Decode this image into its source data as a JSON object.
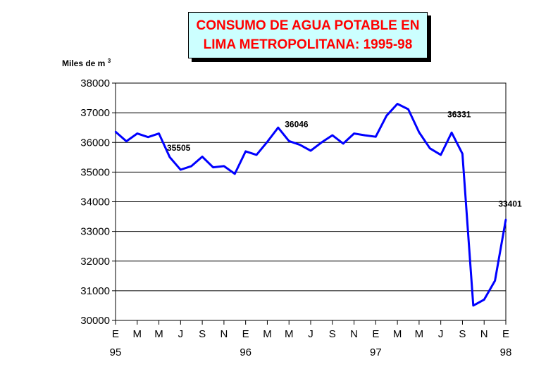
{
  "chart_data": {
    "type": "line",
    "title_lines": [
      "CONSUMO DE AGUA POTABLE EN",
      "LIMA METROPOLITANA: 1995-98"
    ],
    "ylabel": "Miles de m",
    "ylabel_sup": "3",
    "ylim": [
      30000,
      38000
    ],
    "yticks": [
      30000,
      31000,
      32000,
      33000,
      34000,
      35000,
      36000,
      37000,
      38000
    ],
    "x_tick_labels": [
      "E",
      "M",
      "M",
      "J",
      "S",
      "N",
      "E",
      "M",
      "M",
      "J",
      "S",
      "N",
      "E",
      "M",
      "M",
      "J",
      "S",
      "N",
      "E"
    ],
    "year_labels": [
      {
        "label": "95",
        "tick_index": 0
      },
      {
        "label": "96",
        "tick_index": 6
      },
      {
        "label": "97",
        "tick_index": 12
      },
      {
        "label": "98",
        "tick_index": 18
      }
    ],
    "grid": true,
    "line_color": "#0000ff",
    "series": [
      {
        "values": [
          36360,
          36040,
          36300,
          36180,
          36300,
          35505,
          35080,
          35200,
          35520,
          35160,
          35200,
          34940,
          35700,
          35580,
          36020,
          36500,
          36046,
          35920,
          35720,
          36000,
          36240,
          35960,
          36300,
          36240,
          36190,
          36900,
          37300,
          37120,
          36340,
          35800,
          35580,
          36331,
          35620,
          30500,
          30700,
          31340,
          33401
        ]
      }
    ],
    "data_labels": [
      {
        "index": 5,
        "text": "35505"
      },
      {
        "index": 16,
        "text": "36046"
      },
      {
        "index": 31,
        "text": "36331"
      },
      {
        "index": 36,
        "text": "33401"
      }
    ]
  }
}
